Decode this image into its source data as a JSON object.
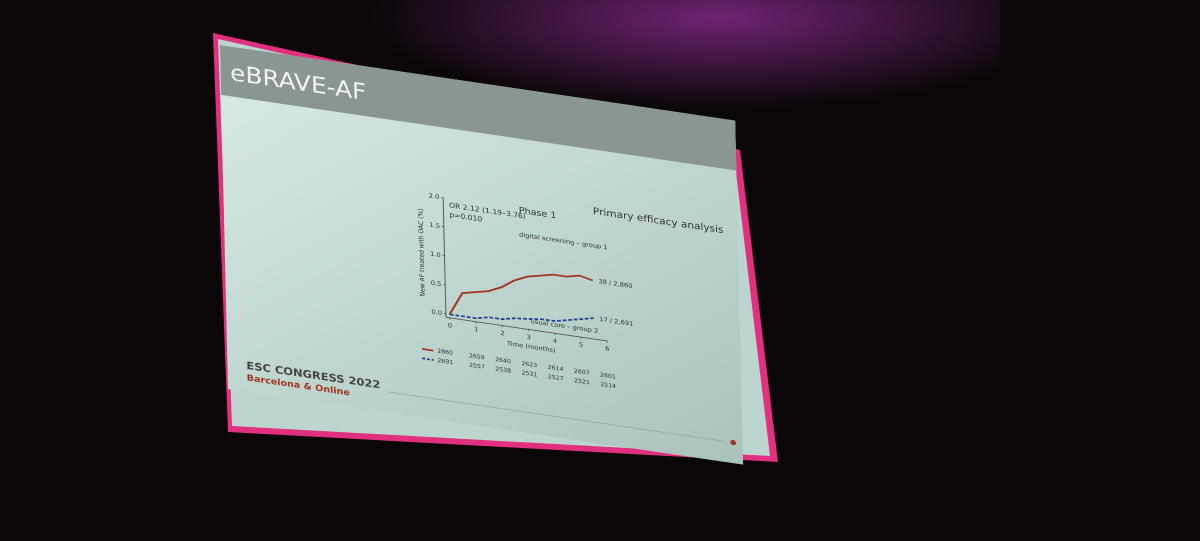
{
  "slide": {
    "title": "eBRAVE-AF",
    "heading": "Primary efficacy analysis",
    "footer_title": "ESC CONGRESS 2022",
    "footer_subtitle": "Barcelona & Online"
  },
  "chart_data": {
    "type": "line",
    "title": "Phase 1",
    "y_label": "New AF treated with OAC (%)",
    "x_label": "Time (months)",
    "annotations": [
      "OR 2.12 (1.19–3.76)",
      "p=0.010",
      "38 / 2,860",
      "17 / 2,691",
      "usual care – group 2"
    ],
    "x": [
      0,
      0.5,
      1,
      1.5,
      2,
      2.5,
      3,
      3.5,
      4,
      4.5,
      5,
      5.5
    ],
    "series": [
      {
        "name": "digital screening – group 1",
        "color": "#a3341f",
        "values": [
          0,
          0.4,
          0.45,
          0.5,
          0.6,
          0.75,
          0.85,
          0.9,
          0.95,
          0.95,
          1.0,
          0.95
        ]
      },
      {
        "name": "usual care",
        "color": "#1f3f8f",
        "values": [
          0,
          0.0,
          0.0,
          0.05,
          0.05,
          0.1,
          0.12,
          0.15,
          0.15,
          0.2,
          0.25,
          0.3
        ]
      }
    ],
    "xlim": [
      0,
      6
    ],
    "xticks": [
      0,
      1,
      2,
      3,
      4,
      5,
      6
    ],
    "ylim": [
      0,
      2
    ],
    "yticks": [
      {
        "value": 0,
        "label": "0.0"
      },
      0.5,
      {
        "value": 1,
        "label": "1.0"
      },
      1.5,
      {
        "value": 2,
        "label": "2.0"
      }
    ],
    "risk_table": [
      [
        "2860",
        "2659",
        "2640",
        "2623",
        "2614",
        "2607",
        "2601"
      ],
      [
        "2691",
        "2557",
        "2538",
        "2531",
        "2527",
        "2521",
        "2514"
      ]
    ]
  }
}
